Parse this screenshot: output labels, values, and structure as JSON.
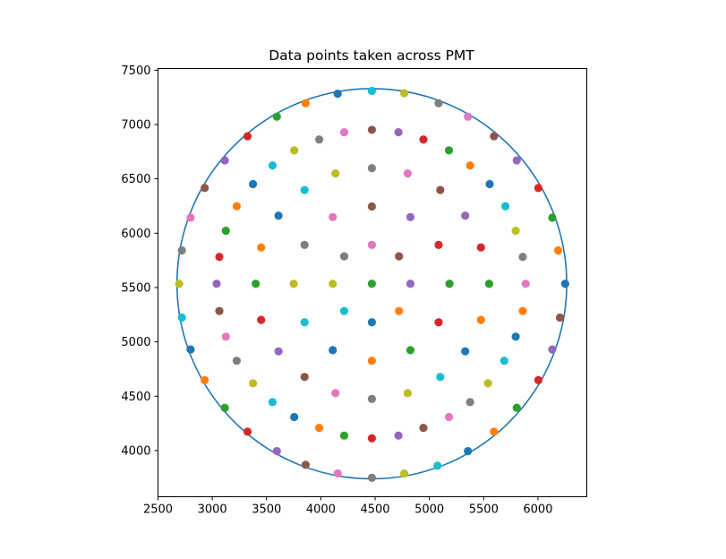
{
  "chart_data": {
    "type": "scatter",
    "title": "Data points taken across PMT",
    "xlabel": "",
    "ylabel": "",
    "xlim": [
      2500,
      6450
    ],
    "ylim": [
      3575,
      7515
    ],
    "xticks": [
      2500,
      3000,
      3500,
      4000,
      4500,
      5000,
      5500,
      6000
    ],
    "yticks": [
      4000,
      4500,
      5000,
      5500,
      6000,
      6500,
      7000,
      7500
    ],
    "xtick_labels": [
      "2500",
      "3000",
      "3500",
      "4000",
      "4500",
      "5000",
      "5500",
      "6000"
    ],
    "ytick_labels": [
      "4000",
      "4500",
      "5000",
      "5500",
      "6000",
      "6500",
      "7000",
      "7500"
    ],
    "grid": false,
    "legend": "none",
    "circle": {
      "cx": 4470,
      "cy": 5535,
      "r": 1795,
      "color": "#1f77b4"
    },
    "palette": [
      "#1f77b4",
      "#ff7f0e",
      "#2ca02c",
      "#d62728",
      "#9467bd",
      "#8c564b",
      "#e377c2",
      "#7f7f7f",
      "#bcbd22",
      "#17becf"
    ],
    "points": [
      [
        6251,
        5535
      ],
      [
        6186,
        5842
      ],
      [
        6132,
        6143
      ],
      [
        6004,
        6416
      ],
      [
        5805,
        6670
      ],
      [
        5595,
        6892
      ],
      [
        5355,
        7072
      ],
      [
        5085,
        7196
      ],
      [
        4768,
        7288
      ],
      [
        4470,
        7309
      ],
      [
        4155,
        7283
      ],
      [
        3860,
        7196
      ],
      [
        3595,
        7072
      ],
      [
        3325,
        6892
      ],
      [
        3115,
        6670
      ],
      [
        2930,
        6416
      ],
      [
        2800,
        6143
      ],
      [
        2720,
        5842
      ],
      [
        2695,
        5535
      ],
      [
        2720,
        5224
      ],
      [
        2800,
        4930
      ],
      [
        2930,
        4648
      ],
      [
        3115,
        4393
      ],
      [
        3325,
        4174
      ],
      [
        3595,
        3995
      ],
      [
        3860,
        3869
      ],
      [
        4155,
        3789
      ],
      [
        4470,
        3749
      ],
      [
        4768,
        3789
      ],
      [
        5075,
        3861
      ],
      [
        5355,
        3995
      ],
      [
        5595,
        4174
      ],
      [
        5805,
        4393
      ],
      [
        6004,
        4648
      ],
      [
        6132,
        4930
      ],
      [
        6203,
        5224
      ],
      [
        5887,
        5535
      ],
      [
        5860,
        5782
      ],
      [
        5795,
        6022
      ],
      [
        5700,
        6248
      ],
      [
        5555,
        6452
      ],
      [
        5375,
        6623
      ],
      [
        5180,
        6762
      ],
      [
        4945,
        6862
      ],
      [
        4715,
        6929
      ],
      [
        4470,
        6951
      ],
      [
        4215,
        6929
      ],
      [
        3985,
        6862
      ],
      [
        3755,
        6762
      ],
      [
        3555,
        6623
      ],
      [
        3375,
        6452
      ],
      [
        3225,
        6248
      ],
      [
        3125,
        6022
      ],
      [
        3065,
        5782
      ],
      [
        3040,
        5535
      ],
      [
        3065,
        5284
      ],
      [
        3125,
        5048
      ],
      [
        3225,
        4826
      ],
      [
        3375,
        4619
      ],
      [
        3555,
        4446
      ],
      [
        3755,
        4309
      ],
      [
        3985,
        4209
      ],
      [
        4215,
        4138
      ],
      [
        4470,
        4113
      ],
      [
        4715,
        4138
      ],
      [
        4945,
        4209
      ],
      [
        5180,
        4309
      ],
      [
        5375,
        4446
      ],
      [
        5540,
        4619
      ],
      [
        5690,
        4826
      ],
      [
        5795,
        5048
      ],
      [
        5860,
        5284
      ],
      [
        5550,
        5535
      ],
      [
        5475,
        5869
      ],
      [
        5330,
        6161
      ],
      [
        5100,
        6397
      ],
      [
        4800,
        6550
      ],
      [
        4470,
        6598
      ],
      [
        4135,
        6550
      ],
      [
        3850,
        6397
      ],
      [
        3610,
        6161
      ],
      [
        3450,
        5869
      ],
      [
        3400,
        5535
      ],
      [
        3450,
        5202
      ],
      [
        3610,
        4913
      ],
      [
        3850,
        4677
      ],
      [
        4135,
        4528
      ],
      [
        4470,
        4475
      ],
      [
        4800,
        4528
      ],
      [
        5100,
        4677
      ],
      [
        5330,
        4913
      ],
      [
        5475,
        5202
      ],
      [
        5185,
        5535
      ],
      [
        5085,
        5892
      ],
      [
        4825,
        6148
      ],
      [
        4470,
        6246
      ],
      [
        4110,
        6148
      ],
      [
        3850,
        5892
      ],
      [
        3750,
        5535
      ],
      [
        3850,
        5180
      ],
      [
        4110,
        4924
      ],
      [
        4470,
        4826
      ],
      [
        4825,
        4924
      ],
      [
        5085,
        5180
      ],
      [
        4825,
        5535
      ],
      [
        4720,
        5787
      ],
      [
        4470,
        5892
      ],
      [
        4215,
        5787
      ],
      [
        4110,
        5535
      ],
      [
        4215,
        5284
      ],
      [
        4470,
        5180
      ],
      [
        4720,
        5284
      ],
      [
        4470,
        5535
      ]
    ]
  }
}
